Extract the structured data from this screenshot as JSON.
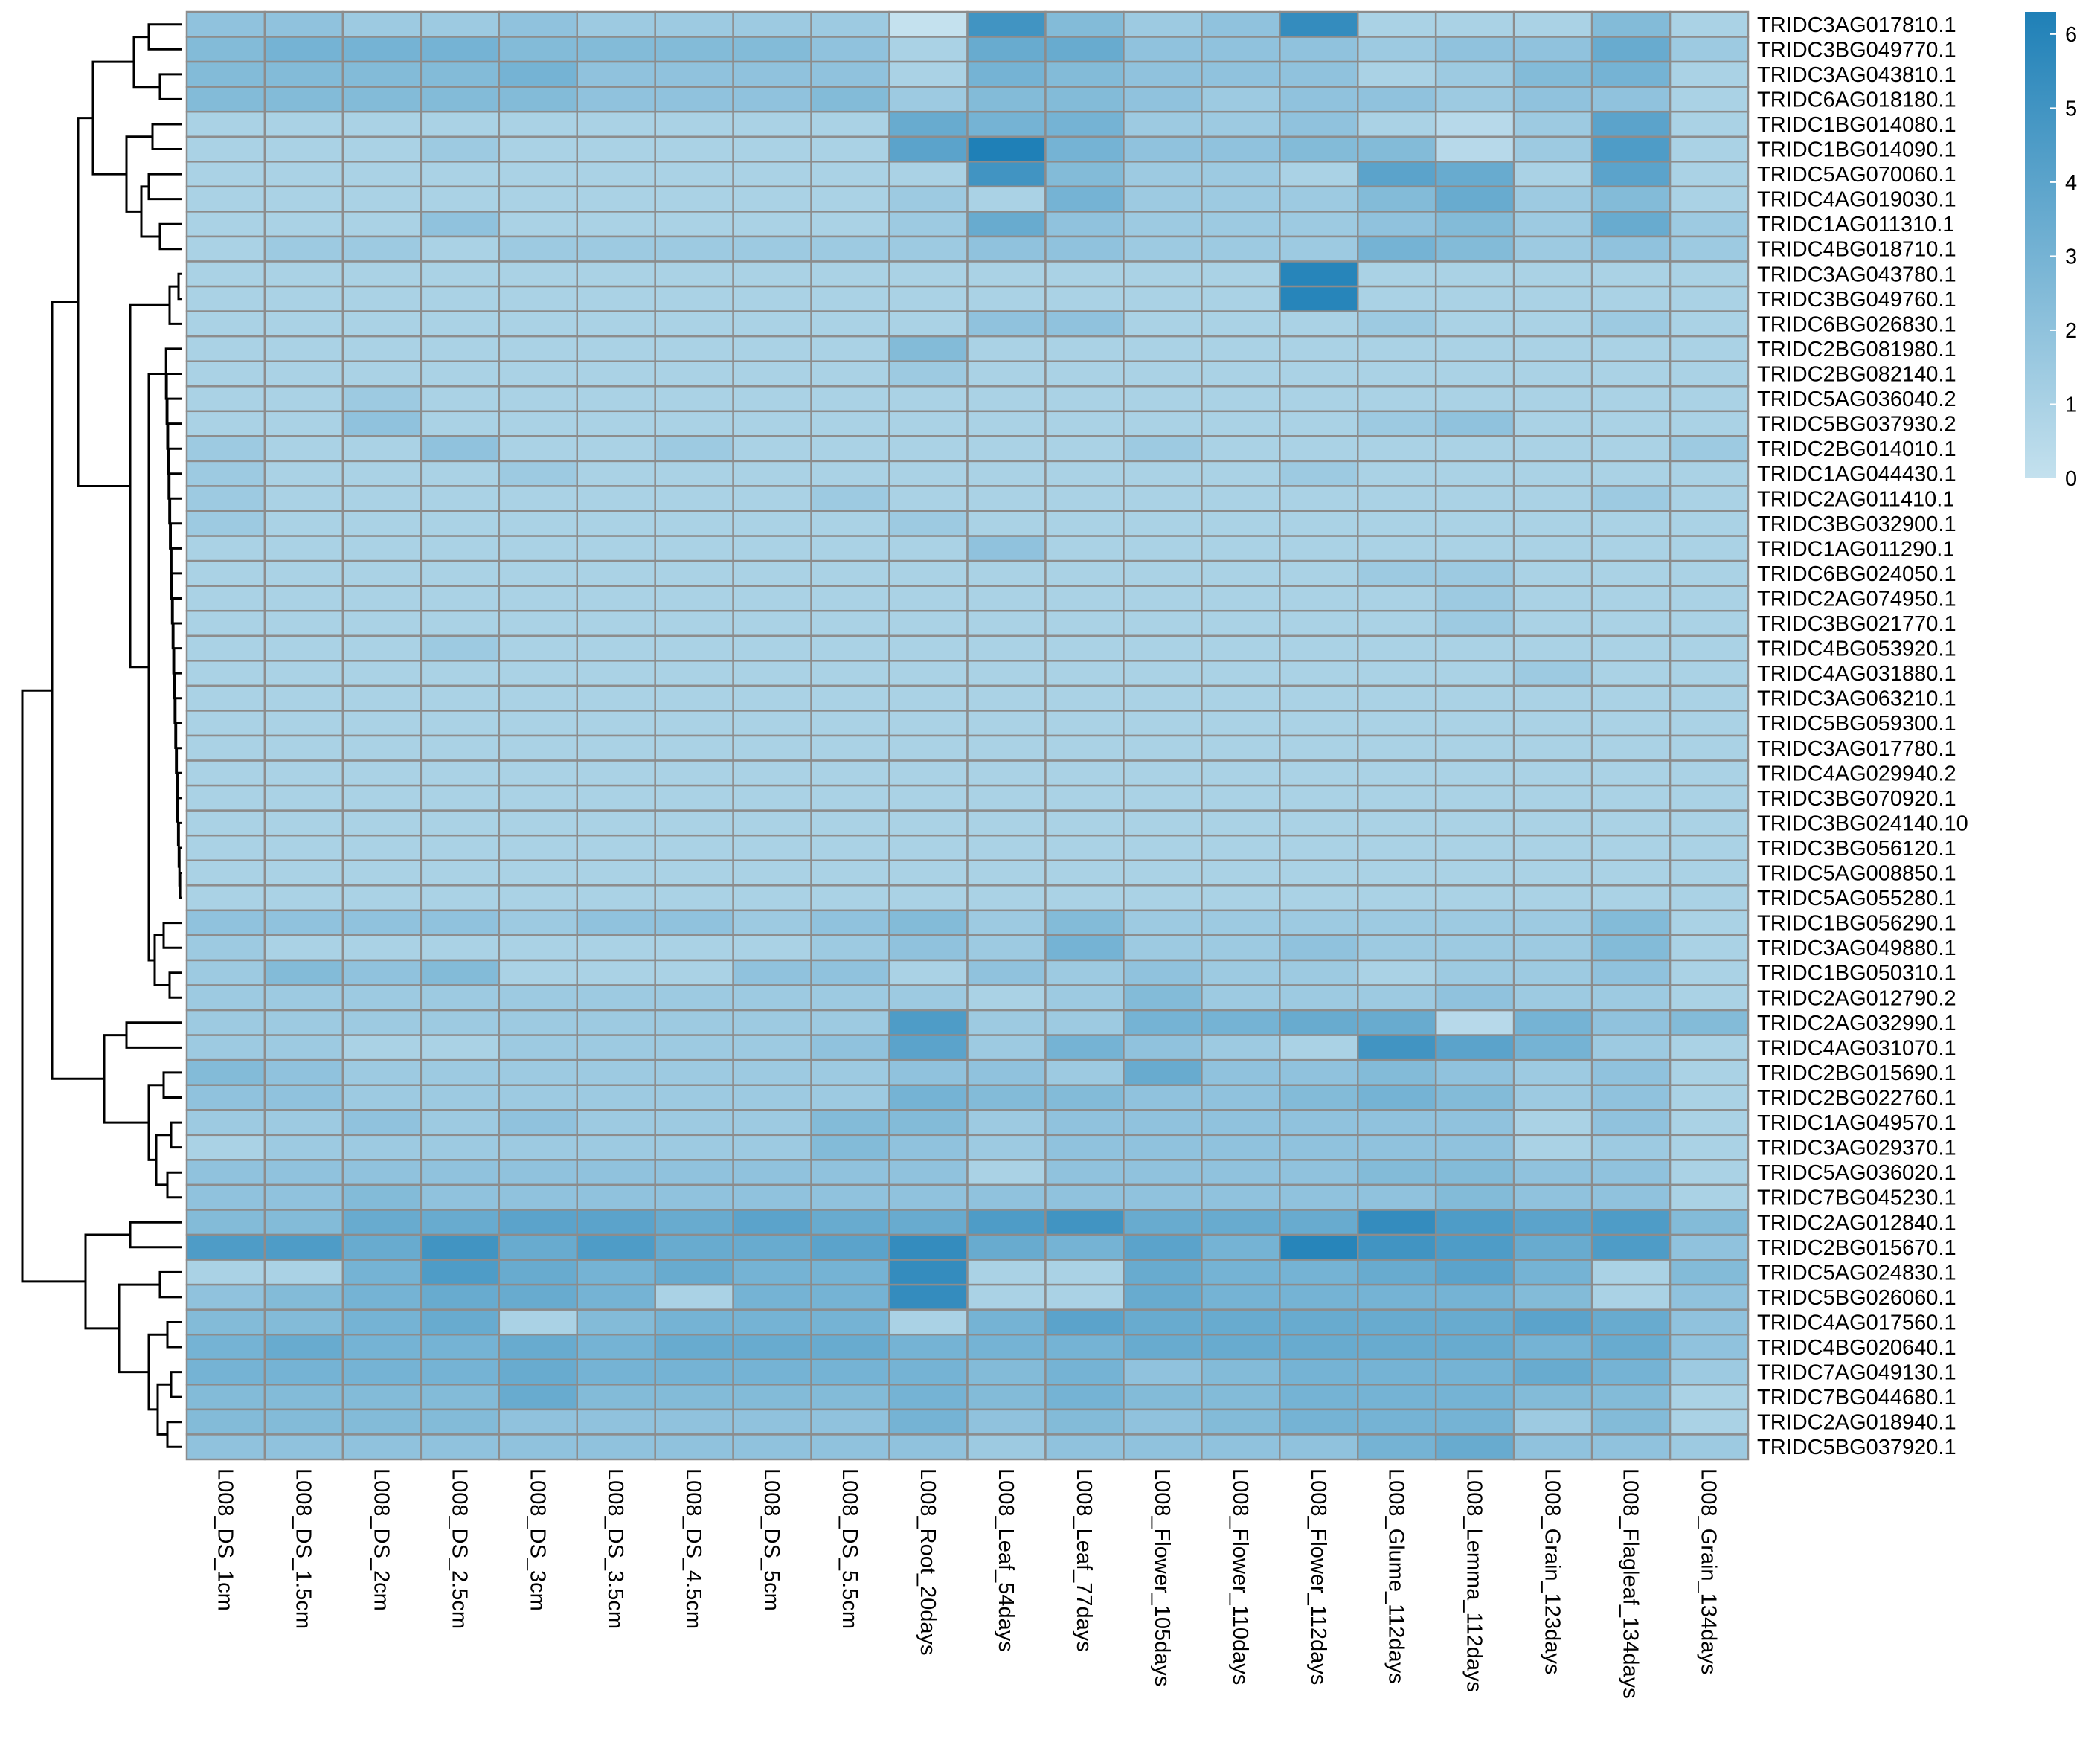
{
  "chart_data": {
    "type": "heatmap",
    "title": "",
    "columns": [
      "L008_DS_1cm",
      "L008_DS_1.5cm",
      "L008_DS_2cm",
      "L008_DS_2.5cm",
      "L008_DS_3cm",
      "L008_DS_3.5cm",
      "L008_DS_4.5cm",
      "L008_DS_5cm",
      "L008_DS_5.5cm",
      "L008_Root_20days",
      "L008_Leaf_54days",
      "L008_Leaf_77days",
      "L008_Flower_105days",
      "L008_Flower_110days",
      "L008_Flower_112days",
      "L008_Glume_112days",
      "L008_Lemma_112days",
      "L008_Grain_123days",
      "L008_Flagleaf_134days",
      "L008_Grain_134days"
    ],
    "rows": [
      "TRIDC3AG017810.1",
      "TRIDC3BG049770.1",
      "TRIDC3AG043810.1",
      "TRIDC6AG018180.1",
      "TRIDC1BG014080.1",
      "TRIDC1BG014090.1",
      "TRIDC5AG070060.1",
      "TRIDC4AG019030.1",
      "TRIDC1AG011310.1",
      "TRIDC4BG018710.1",
      "TRIDC3AG043780.1",
      "TRIDC3BG049760.1",
      "TRIDC6BG026830.1",
      "TRIDC2BG081980.1",
      "TRIDC2BG082140.1",
      "TRIDC5AG036040.2",
      "TRIDC5BG037930.2",
      "TRIDC2BG014010.1",
      "TRIDC1AG044430.1",
      "TRIDC2AG011410.1",
      "TRIDC3BG032900.1",
      "TRIDC1AG011290.1",
      "TRIDC6BG024050.1",
      "TRIDC2AG074950.1",
      "TRIDC3BG021770.1",
      "TRIDC4BG053920.1",
      "TRIDC4AG031880.1",
      "TRIDC3AG063210.1",
      "TRIDC5BG059300.1",
      "TRIDC3AG017780.1",
      "TRIDC4AG029940.2",
      "TRIDC3BG070920.1",
      "TRIDC3BG024140.10",
      "TRIDC3BG056120.1",
      "TRIDC5AG008850.1",
      "TRIDC5AG055280.1",
      "TRIDC1BG056290.1",
      "TRIDC3AG049880.1",
      "TRIDC1BG050310.1",
      "TRIDC2AG012790.2",
      "TRIDC2AG032990.1",
      "TRIDC4AG031070.1",
      "TRIDC2BG015690.1",
      "TRIDC2BG022760.1",
      "TRIDC1AG049570.1",
      "TRIDC3AG029370.1",
      "TRIDC5AG036020.1",
      "TRIDC7BG045230.1",
      "TRIDC2AG012840.1",
      "TRIDC2BG015670.1",
      "TRIDC5AG024830.1",
      "TRIDC5BG026060.1",
      "TRIDC4AG017560.1",
      "TRIDC4BG020640.1",
      "TRIDC7AG049130.1",
      "TRIDC7BG044680.1",
      "TRIDC2AG018940.1",
      "TRIDC5BG037920.1"
    ],
    "values": [
      [
        2,
        2,
        1.5,
        1.5,
        2,
        1.5,
        1.5,
        1.5,
        1.5,
        0,
        5,
        2.5,
        1.5,
        2,
        5.5,
        1,
        1,
        1,
        2.5,
        1
      ],
      [
        2.5,
        3,
        3,
        3,
        2.5,
        2.5,
        2.5,
        2.5,
        2,
        1,
        3.5,
        3.5,
        2,
        2,
        2,
        1.5,
        2,
        2,
        3.5,
        1.5
      ],
      [
        2.5,
        2.5,
        2.5,
        2.5,
        3,
        2,
        2,
        2,
        2,
        1,
        3,
        2.5,
        2,
        2,
        2,
        1,
        1.5,
        2.5,
        3,
        1
      ],
      [
        2.5,
        2.5,
        2.5,
        2.5,
        2.5,
        2,
        2,
        2,
        2.5,
        1.5,
        2.5,
        2.5,
        2,
        1.5,
        2,
        2,
        1.5,
        2,
        2,
        1
      ],
      [
        1,
        1,
        1,
        1,
        1,
        1,
        1,
        1,
        1,
        3.5,
        3,
        3,
        1.5,
        1.5,
        2,
        1,
        0.5,
        1.5,
        4,
        1
      ],
      [
        1,
        1,
        1,
        1.5,
        1,
        1,
        1,
        1,
        1,
        4,
        6.5,
        3,
        2,
        2,
        2.5,
        2.5,
        0.5,
        1.5,
        4.5,
        1
      ],
      [
        1,
        1,
        1,
        1,
        1,
        1,
        1,
        1,
        1,
        1,
        5,
        2.5,
        1.5,
        1.5,
        1,
        4,
        3.5,
        1,
        4,
        1
      ],
      [
        1,
        1,
        1,
        1,
        1,
        1,
        1,
        1,
        1,
        1.5,
        1,
        3,
        1.5,
        1.5,
        1.5,
        2.5,
        3.5,
        1.5,
        2.5,
        1
      ],
      [
        1,
        1,
        1,
        2,
        1,
        1,
        1,
        1,
        1,
        1.5,
        3.5,
        2,
        1.5,
        1.5,
        1.5,
        2,
        2.5,
        1.5,
        3.5,
        1.5
      ],
      [
        1,
        1.5,
        1.5,
        1,
        1.5,
        1.5,
        1.5,
        1.5,
        1.5,
        1.5,
        2,
        2,
        1.5,
        1.5,
        1.5,
        3,
        2.5,
        1.5,
        2,
        1.5
      ],
      [
        1,
        1,
        1,
        1,
        1,
        1,
        1,
        1,
        1,
        1,
        1,
        1,
        1,
        1,
        6,
        1,
        1,
        1,
        1,
        1
      ],
      [
        1,
        1,
        1,
        1,
        1,
        1,
        1,
        1,
        1,
        1,
        1,
        1,
        1,
        1,
        6,
        1,
        1,
        1,
        1,
        1
      ],
      [
        1,
        1,
        1,
        1,
        1,
        1,
        1,
        1,
        1,
        1,
        2,
        2,
        1,
        1,
        1,
        1.5,
        1,
        1,
        1.5,
        1
      ],
      [
        1,
        1,
        1,
        1,
        1,
        1,
        1,
        1,
        1,
        2.5,
        1,
        1,
        1,
        1,
        1,
        1,
        1,
        1,
        1,
        1
      ],
      [
        1,
        1,
        1,
        1,
        1,
        1,
        1,
        1,
        1,
        1.5,
        1,
        1,
        1,
        1,
        1,
        1,
        1,
        1,
        1,
        1
      ],
      [
        1,
        1,
        1.5,
        1,
        1,
        1,
        1,
        1,
        1,
        1,
        1,
        1,
        1,
        1,
        1,
        1,
        1,
        1,
        1,
        1
      ],
      [
        1,
        1,
        2,
        1,
        1,
        1,
        1,
        1,
        1,
        1,
        1,
        1,
        1,
        1,
        1,
        1.5,
        2,
        1,
        1,
        1
      ],
      [
        1.5,
        1,
        1,
        2,
        1,
        1,
        1.5,
        1,
        1,
        1,
        1,
        1,
        1.5,
        1,
        1,
        1,
        1,
        1,
        1,
        1.5
      ],
      [
        1.5,
        1,
        1,
        1,
        1.5,
        1,
        1,
        1,
        1,
        1,
        1,
        1,
        1,
        1,
        1.5,
        1,
        1,
        1,
        1,
        1
      ],
      [
        1.5,
        1,
        1,
        1,
        1,
        1,
        1,
        1,
        1.5,
        1,
        1,
        1,
        1,
        1,
        1,
        1,
        1,
        1,
        1.5,
        1
      ],
      [
        1.5,
        1,
        1,
        1,
        1,
        1,
        1,
        1,
        1,
        1.5,
        1,
        1,
        1,
        1,
        1,
        1,
        1,
        1,
        1,
        1
      ],
      [
        1,
        1,
        1,
        1,
        1,
        1,
        1,
        1,
        1,
        1,
        2,
        1,
        1,
        1,
        1,
        1,
        1,
        1,
        1,
        1
      ],
      [
        1,
        1,
        1,
        1,
        1,
        1,
        1,
        1,
        1,
        1,
        1,
        1,
        1,
        1,
        1,
        1.5,
        1.5,
        1,
        1,
        1
      ],
      [
        1,
        1,
        1,
        1,
        1,
        1,
        1,
        1,
        1,
        1,
        1,
        1,
        1,
        1,
        1,
        1,
        1.5,
        1,
        1,
        1
      ],
      [
        1,
        1,
        1,
        1,
        1,
        1,
        1,
        1,
        1,
        1,
        1,
        1,
        1,
        1,
        1,
        1,
        1.5,
        1,
        1,
        1
      ],
      [
        1,
        1,
        1,
        1.5,
        1,
        1,
        1,
        1,
        1,
        1,
        1,
        1,
        1,
        1,
        1,
        1,
        1,
        1,
        1,
        1
      ],
      [
        1,
        1,
        1,
        1,
        1,
        1,
        1,
        1,
        1,
        1,
        1,
        1,
        1,
        1,
        1,
        1,
        1,
        1.5,
        1,
        1
      ],
      [
        1,
        1,
        1,
        1,
        1,
        1,
        1,
        1,
        1,
        1,
        1,
        1,
        1,
        1,
        1,
        1,
        1,
        1,
        1,
        1
      ],
      [
        1,
        1,
        1,
        1,
        1,
        1,
        1,
        1,
        1,
        1,
        1,
        1,
        1,
        1,
        1,
        1,
        1,
        1,
        1,
        1
      ],
      [
        1,
        1,
        1,
        1,
        1,
        1,
        1,
        1,
        1,
        1,
        1,
        1,
        1,
        1,
        1,
        1,
        1,
        1,
        1,
        1
      ],
      [
        1,
        1,
        1,
        1,
        1,
        1,
        1,
        1,
        1,
        1,
        1,
        1,
        1,
        1,
        1,
        1,
        1,
        1,
        1,
        1
      ],
      [
        1,
        1,
        1,
        1,
        1,
        1,
        1,
        1,
        1,
        1,
        1,
        1,
        1,
        1,
        1,
        1,
        1,
        1,
        1,
        1
      ],
      [
        1,
        1,
        1,
        1,
        1,
        1,
        1,
        1,
        1,
        1,
        1,
        1,
        1,
        1,
        1,
        1,
        1,
        1,
        1,
        1
      ],
      [
        1,
        1,
        1,
        1,
        1,
        1,
        1,
        1,
        1,
        1,
        1,
        1,
        1,
        1,
        1,
        1,
        1,
        1,
        1,
        1
      ],
      [
        1,
        1,
        1,
        1,
        1,
        1,
        1,
        1,
        1,
        1,
        1,
        1,
        1,
        1,
        1,
        1,
        1,
        1,
        1,
        1
      ],
      [
        1,
        1,
        1,
        1,
        1,
        1,
        1,
        1,
        1,
        1,
        1,
        1,
        1,
        1,
        1,
        1,
        1,
        1,
        1,
        1
      ],
      [
        2,
        2,
        2,
        2,
        1.5,
        2,
        2,
        1.5,
        2,
        2.5,
        1.5,
        2.5,
        1.5,
        1.5,
        1.5,
        1.5,
        1.5,
        1.5,
        2.5,
        1
      ],
      [
        1.5,
        1,
        1,
        1,
        1,
        1,
        1,
        1,
        1.5,
        2,
        1.5,
        3,
        1.5,
        1.5,
        2,
        1.5,
        1.5,
        1.5,
        2.5,
        1
      ],
      [
        1.5,
        2.5,
        2,
        2.5,
        1,
        1,
        1,
        2,
        2,
        1,
        2,
        1.5,
        2,
        1.5,
        1.5,
        1,
        1.5,
        1.5,
        2,
        1
      ],
      [
        1.5,
        1.5,
        1.5,
        1.5,
        1.5,
        1.5,
        1.5,
        1.5,
        1.5,
        1.5,
        1,
        1.5,
        2.5,
        1.5,
        1.5,
        1.5,
        2,
        1.5,
        1.5,
        1
      ],
      [
        1.5,
        1.5,
        1.5,
        1.5,
        1.5,
        1.5,
        1.5,
        1.5,
        1.5,
        4.5,
        1.5,
        1.5,
        3,
        3,
        3.5,
        3.5,
        0.5,
        3,
        2,
        2.5
      ],
      [
        1.5,
        1.5,
        1,
        1,
        1.5,
        1.5,
        1.5,
        1.5,
        2,
        4,
        1.5,
        3,
        2,
        1.5,
        1,
        5,
        4,
        3,
        1.5,
        1
      ],
      [
        2.5,
        2,
        1.5,
        1.5,
        1.5,
        1.5,
        1.5,
        1.5,
        1.5,
        2,
        2,
        1.5,
        3.5,
        2,
        2,
        2.5,
        2,
        1.5,
        2,
        1
      ],
      [
        2,
        2,
        1.5,
        1.5,
        1.5,
        1.5,
        1.5,
        1.5,
        1.5,
        3,
        2.5,
        2.5,
        2,
        2,
        2.5,
        3,
        2.5,
        1.5,
        2,
        1
      ],
      [
        1.5,
        1.5,
        2,
        1.5,
        2,
        1.5,
        1.5,
        1.5,
        2.5,
        2.5,
        1.5,
        2,
        2,
        2,
        2,
        2,
        2,
        1,
        2,
        1
      ],
      [
        1,
        1.5,
        1.5,
        1.5,
        1.5,
        1.5,
        1.5,
        1.5,
        2.5,
        2,
        1.5,
        2,
        2,
        2,
        2,
        2,
        2,
        1,
        1.5,
        1
      ],
      [
        2,
        2,
        2,
        2,
        2,
        2,
        2,
        2,
        2,
        2,
        1,
        2,
        2,
        2,
        2,
        2.5,
        2.5,
        2,
        2,
        1
      ],
      [
        2,
        2,
        2.5,
        2,
        2,
        2,
        2,
        2,
        2,
        2,
        2,
        2,
        2,
        2,
        2,
        2,
        2.5,
        2,
        2,
        1
      ],
      [
        2.5,
        2.5,
        3.5,
        3.5,
        4,
        4,
        3.5,
        4,
        3.5,
        3.5,
        4.5,
        5,
        3.5,
        3.5,
        3.5,
        5.5,
        4.5,
        4,
        4.5,
        2.5
      ],
      [
        4.5,
        4.5,
        3.5,
        5,
        3.5,
        4.5,
        3.5,
        3.5,
        4,
        5.5,
        3.5,
        3,
        4,
        3,
        6,
        5,
        4.5,
        3.5,
        4.5,
        2
      ],
      [
        1,
        1,
        3,
        4.5,
        3.5,
        3,
        3.5,
        3,
        3,
        5.5,
        1,
        1,
        3.5,
        3,
        3,
        3.5,
        4,
        3,
        1,
        2.5
      ],
      [
        2,
        2.5,
        3,
        3.5,
        3.5,
        3,
        1,
        3,
        3,
        5.5,
        1,
        1,
        3.5,
        3,
        3,
        3,
        3,
        2.5,
        1,
        2
      ],
      [
        2.5,
        2.5,
        3,
        3.5,
        1,
        2.5,
        3,
        3,
        3,
        1,
        3,
        4,
        3.5,
        3.5,
        3.5,
        3.5,
        3.5,
        4,
        3.5,
        2
      ],
      [
        3,
        3.5,
        3,
        3,
        3.5,
        3,
        3.5,
        3.5,
        3.5,
        3,
        3,
        3,
        3.5,
        3.5,
        3.5,
        3.5,
        3.5,
        3,
        3.5,
        2
      ],
      [
        3,
        3,
        3,
        3,
        3.5,
        3,
        3,
        3,
        3,
        3,
        2.5,
        3,
        2,
        2.5,
        3,
        3,
        3,
        3.5,
        3,
        1.5
      ],
      [
        2.5,
        2.5,
        2.5,
        2.5,
        3.5,
        2.5,
        2.5,
        2.5,
        2.5,
        3,
        2.5,
        3,
        2.5,
        2.5,
        3,
        3,
        3,
        2.5,
        2.5,
        1
      ],
      [
        2.5,
        2.5,
        2.5,
        2.5,
        2,
        2,
        2,
        2,
        2,
        3,
        2,
        2.5,
        2,
        2.5,
        3,
        3,
        3,
        1.5,
        2.5,
        1
      ],
      [
        2,
        2,
        2,
        2,
        2,
        2,
        2,
        2,
        2,
        2,
        1.5,
        2,
        2,
        2,
        2,
        3,
        3.5,
        2,
        2,
        1.5
      ]
    ],
    "color_scale": {
      "min": 0,
      "max": 6.3,
      "low_color": "#c4e1ee",
      "high_color": "#1f80b7",
      "gridline_color": "#8c8c8c"
    },
    "legend": {
      "ticks": [
        "0",
        "1",
        "2",
        "3",
        "4",
        "5",
        "6"
      ],
      "placement": "top-right"
    },
    "row_dendrogram": true,
    "col_dendrogram": false
  }
}
